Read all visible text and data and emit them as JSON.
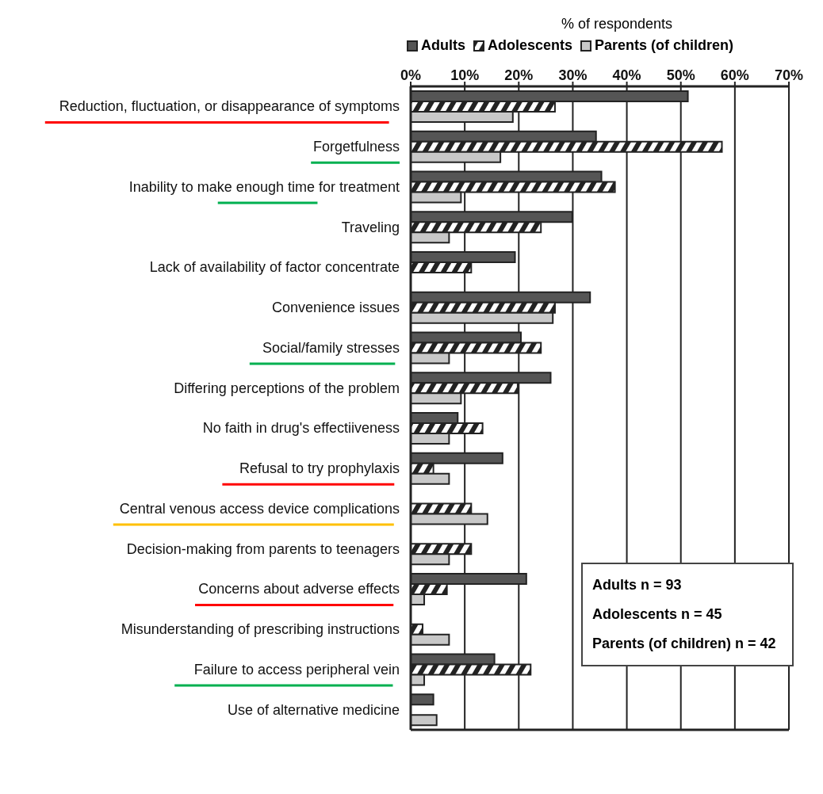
{
  "chart_data": {
    "type": "bar",
    "orientation": "horizontal",
    "xlabel": "% of respondents",
    "categories": [
      "Reduction, fluctuation, or disappearance of symptoms",
      "Forgetfulness",
      "Inability to make enough time for treatment",
      "Traveling",
      "Lack of availability of factor concentrate",
      "Convenience issues",
      "Social/family stresses",
      "Differing perceptions of the problem",
      "No faith in drug's effectiiveness",
      "Refusal to try prophylaxis",
      "Central venous access device complications",
      "Decision-making from parents to teenagers",
      "Concerns about adverse effects",
      "Misunderstanding of prescribing instructions",
      "Failure to access peripheral vein",
      "Use of alternative medicine"
    ],
    "series": [
      {
        "name": "Adults",
        "color": "#555555",
        "values": [
          51.3,
          34.3,
          35.3,
          29.9,
          19.3,
          33.2,
          20.4,
          25.9,
          8.7,
          17.0,
          null,
          null,
          21.4,
          null,
          15.5,
          4.2
        ]
      },
      {
        "name": "Adolescents",
        "color": "#222222",
        "values": [
          26.7,
          57.6,
          37.8,
          24.1,
          11.2,
          26.7,
          24.1,
          19.8,
          13.3,
          4.2,
          11.2,
          11.2,
          6.7,
          2.2,
          22.2,
          null
        ]
      },
      {
        "name": "Parents (of children)",
        "color": "#c8c8c8",
        "values": [
          18.9,
          16.6,
          9.3,
          7.1,
          null,
          26.3,
          7.1,
          9.3,
          7.1,
          7.1,
          14.2,
          7.1,
          2.5,
          7.1,
          2.5,
          4.8
        ]
      }
    ],
    "xlim": [
      0,
      70
    ],
    "xticks": [
      {
        "value": 0,
        "label": "0%"
      },
      {
        "value": 10,
        "label": "10%"
      },
      {
        "value": 20,
        "label": "20%"
      },
      {
        "value": 30,
        "label": "30%"
      },
      {
        "value": 40,
        "label": "40%"
      },
      {
        "value": 50,
        "label": "50%"
      },
      {
        "value": 60,
        "label": "60%"
      },
      {
        "value": 70,
        "label": "70%"
      }
    ],
    "grid": "x",
    "legend": "top",
    "annotations": [
      "Adults n = 93",
      "Adolescents n = 45",
      "Parents (of children) n = 42"
    ]
  }
}
